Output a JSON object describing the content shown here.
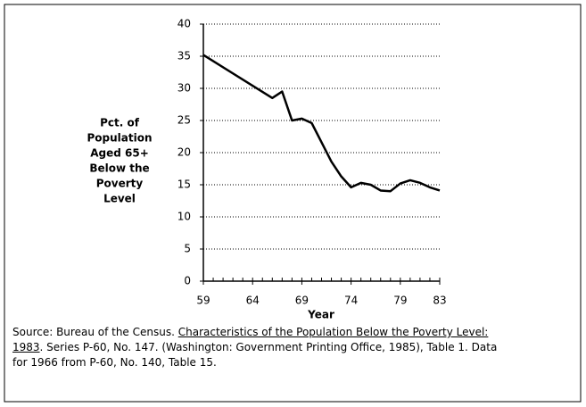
{
  "chart_data": {
    "type": "line",
    "ylabel": [
      "Pct. of",
      "Population",
      "Aged 65+",
      "Below the",
      "Poverty",
      "Level"
    ],
    "xlabel": "Year",
    "x": [
      59,
      66,
      67,
      68,
      69,
      70,
      71,
      72,
      73,
      74,
      75,
      76,
      77,
      78,
      79,
      80,
      81,
      82,
      83
    ],
    "values": [
      35.2,
      28.5,
      29.5,
      25.0,
      25.3,
      24.6,
      21.6,
      18.6,
      16.3,
      14.6,
      15.3,
      15.0,
      14.1,
      14.0,
      15.2,
      15.7,
      15.3,
      14.6,
      14.1
    ],
    "color": "#000000",
    "xlim": [
      59,
      83
    ],
    "xticks": [
      59,
      64,
      69,
      74,
      79,
      83
    ],
    "xminorticks": [
      59,
      60,
      61,
      62,
      63,
      64,
      65,
      66,
      67,
      68,
      69,
      70,
      71,
      72,
      73,
      74,
      75,
      76,
      77,
      78,
      79,
      80,
      81,
      82,
      83
    ],
    "ylim": [
      0,
      40
    ],
    "yticks": [
      0,
      5,
      10,
      15,
      20,
      25,
      30,
      35,
      40
    ],
    "grid": true,
    "source": {
      "prefix": "Source: Bureau of the Census. ",
      "title": "Characteristics of the Population Below the Poverty Level: 1983",
      "rest": ". Series P-60, No. 147. (Washington: Government Printing Office, 1985), Table 1. Data for 1966 from P-60, No. 140, Table 15."
    }
  }
}
